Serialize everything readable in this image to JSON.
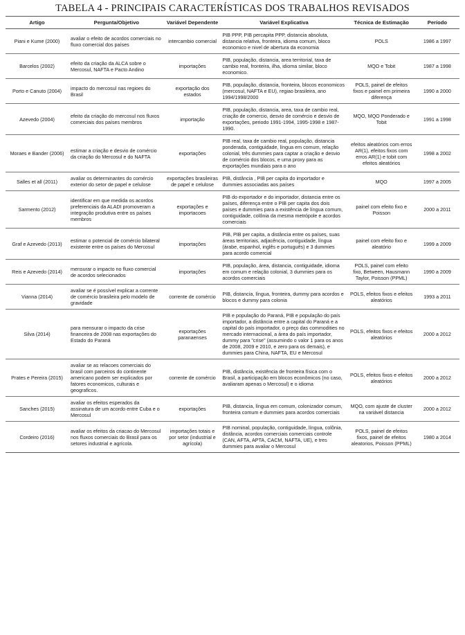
{
  "title": "TABELA 4 - PRINCIPAIS CARACTERÍSTICAS DOS TRABALHOS REVISADOS",
  "columns": [
    "Artigo",
    "Pergunta/Objetivo",
    "Variável Dependente",
    "Variável Explicativa",
    "Técnica de Estimação",
    "Período"
  ],
  "rows": [
    {
      "artigo": "Piani e Kume (2000)",
      "pergunta": "avaliar o efeito de acordos comerciais no fluxo comercial dos países",
      "dep": "intercambio comercial",
      "exp": "PIB PPP, PIB percapita PPP, distancia absoluta, distancia relativa, fronteira, idioma comum, bloco economico e nivel de abertura da economia",
      "tec": "POLS",
      "per": "1986 a 1997"
    },
    {
      "artigo": "Barcelos (2002)",
      "pergunta": "efeito da criação da ALCA sobre o Mercosul, NAFTA e Pacto Andino",
      "dep": "importações",
      "exp": "PIB, população, distancia, area territorial, taxa de cambio real, fronteira, ilha, idioma similar, bloco economico.",
      "tec": "MQO e Tobit",
      "per": "1987 a 1998"
    },
    {
      "artigo": "Porto e Canuto (2004)",
      "pergunta": "impacto do mercosul nas regioes do Brasil",
      "dep": "exportação dos estados",
      "exp": "PIB, população, distancia, fronteira, blocos economicos (mercosul, NAFTA e EU), regiao brasileira, ano 1994/1998/2000",
      "tec": "POLS, painel de efeitos fixos e painel em primeira diferença",
      "per": "1990 a 2000"
    },
    {
      "artigo": "Azevedo (2004)",
      "pergunta": "efeito da criação do mercosul nos fluxos comerciais dos países membros",
      "dep": "importação",
      "exp": "PIB, população, distancia, area, taxa de cambio real, criação de comercio, desvio de comércio e desvio de exportações, periodo 1991-1994, 1995-1998 e 1987-1990.",
      "tec": "MQO, MQO Ponderado e Tobit",
      "per": "1991 a 1998"
    },
    {
      "artigo": "Moraes e Bander (2006)",
      "pergunta": "estimar a criação e desvio de comércio da criação do Mercosul e do NAFTA",
      "dep": "exportações",
      "exp": "PIB real, taxa de cambio real, população, distancia ponderada, contiguidade, língua em comum, relação colonial, três dummies para captar a criação e desvio de comércio dos blocos, e uma proxy para as exportações mundiais para o ano",
      "tec": "efeitos aleatórios com erros AR(1), efeitos fixos com erros AR(1) e tobit com efeitos aleatórios",
      "per": "1998 a 2002"
    },
    {
      "artigo": "Salles et all (2011)",
      "pergunta": "avaliar os determinantes do comércio exterior do setor de papel e celulose",
      "dep": "exportações brasileiras de papel e celulose",
      "exp": "PIB, distância , PIB per capita do importador e dummies associadas aos países",
      "tec": "MQO",
      "per": "1997 a 2005"
    },
    {
      "artigo": "Sarmento (2012)",
      "pergunta": "identificar em que medida os acordos preferenciais da ALADI promoveram a integração produtiva entre os países membros",
      "dep": "exportações e importacoes",
      "exp": "PIB do exportador e do importador, distancia entre os países, diferença entre o PIB per capita dos dois países e dummies para a existência de língua comum, contiguidade, colônia da mesma metrópole e acordos comerciais",
      "tec": "painel com efeito fixo e Poisson",
      "per": "2000 a 2011"
    },
    {
      "artigo": "Graf e Azevedo (2013)",
      "pergunta": "estimar o potencial de comércio bilateral existente entre os países do Mercosul",
      "dep": "importações",
      "exp": "PIB, PIB per capita, a distância entre os países, suas áreas territoriais, adjacência, contiguidade, língua (árabe, espanhol, inglês e português) e 3 dummies para acordo comercial",
      "tec": "painel com efeito fixo e aleatório",
      "per": "1999 a 2009"
    },
    {
      "artigo": "Reis e Azevedo (2014)",
      "pergunta": "mensurar o impacto no fluxo comercial de acordos selecionados",
      "dep": "importações",
      "exp": "PIB, população, área, distancia, contiguidade, idioma em comum e relação colonial, 3 dummies para os acordos comerciais",
      "tec": "POLS, painel com efeito fixo, Between, Hausmann Taylor, Poisson (PPML)",
      "per": "1990 a 2009"
    },
    {
      "artigo": "Vianna (2014)",
      "pergunta": "avaliar se é possível explicar a corrente de comércio brasileira pelo modelo de gravidade",
      "dep": "corrente de comércio",
      "exp": "PIB, distancia, língua, fronteira, dummy para acordos e blocos e dummy para colonia",
      "tec": "POLS, efeitos fixos e efeitos aleatórios",
      "per": "1993 a 2011"
    },
    {
      "artigo": "Silva (2014)",
      "pergunta": "para mensurar o impacto da crise financeira de 2008 nas exportações do Estado do Paraná",
      "dep": "exportações paranaenses",
      "exp": "PIB e população do Paraná, PIB e população do país importador, a distância entre a capital do Paraná e a capital do país importador, o preço das commodities no mercado internacional, a área do país importador,  dummy para \"crise\" (assumindo o valor 1 para os anos de 2008, 2009 e 2010, e zero  para os demais), e dummies para China, NAFTA, EU e Mercosul",
      "tec": "POLS, efeitos fixos e efeitos aleatórios",
      "per": "2000 a 2012"
    },
    {
      "artigo": "Prates e Pereira (2015)",
      "pergunta": "avaliar se as relacoes comerciais do brasil com parceiros do continente americano podem ser explicados por fatores economicos, culturais e geograficos.",
      "dep": "corrente de comércio",
      "exp": "PIB, distância, existência de fronteira física com o Brasil, a participação em blocos econômicos (no caso, avaliaram apenas o Mercosul) e o idioma",
      "tec": "POLS, efeitos fixos e efeitos aleatórios",
      "per": "2000 a 2012"
    },
    {
      "artigo": "Sanches (2015)",
      "pergunta": "avaliar os efeitos esperados da assinatura de um acordo entre Cuba e o Mercosul",
      "dep": "exportações",
      "exp": "PIB, distancia, língua em comum, colonizador comum, fronteira comum e dummies para acordos comerciais",
      "tec": "MQO, com ajuste de cluster na variável distancia",
      "per": "2000 a 2012"
    },
    {
      "artigo": "Cordeiro (2016)",
      "pergunta": "avaliar os efeitos da criacao do Mercosul nos fluxos comerciais do Brasil para os setores industrial e agrícola.",
      "dep": "importações totais e por setor (industrial e agrícola)",
      "exp": "PIB nominal, população, contiguidade, língua, colônia, distância, acordos comerciais comerciais controle (CAN, AFTA, APTA, CACM, NAFTA, UE), e tres dummies para avaliar o Mercosul",
      "tec": "POLS, painel de efeitos fixos, painel de efeitos aleatorios, Poisson (PPML)",
      "per": "1980 a 2014"
    }
  ]
}
